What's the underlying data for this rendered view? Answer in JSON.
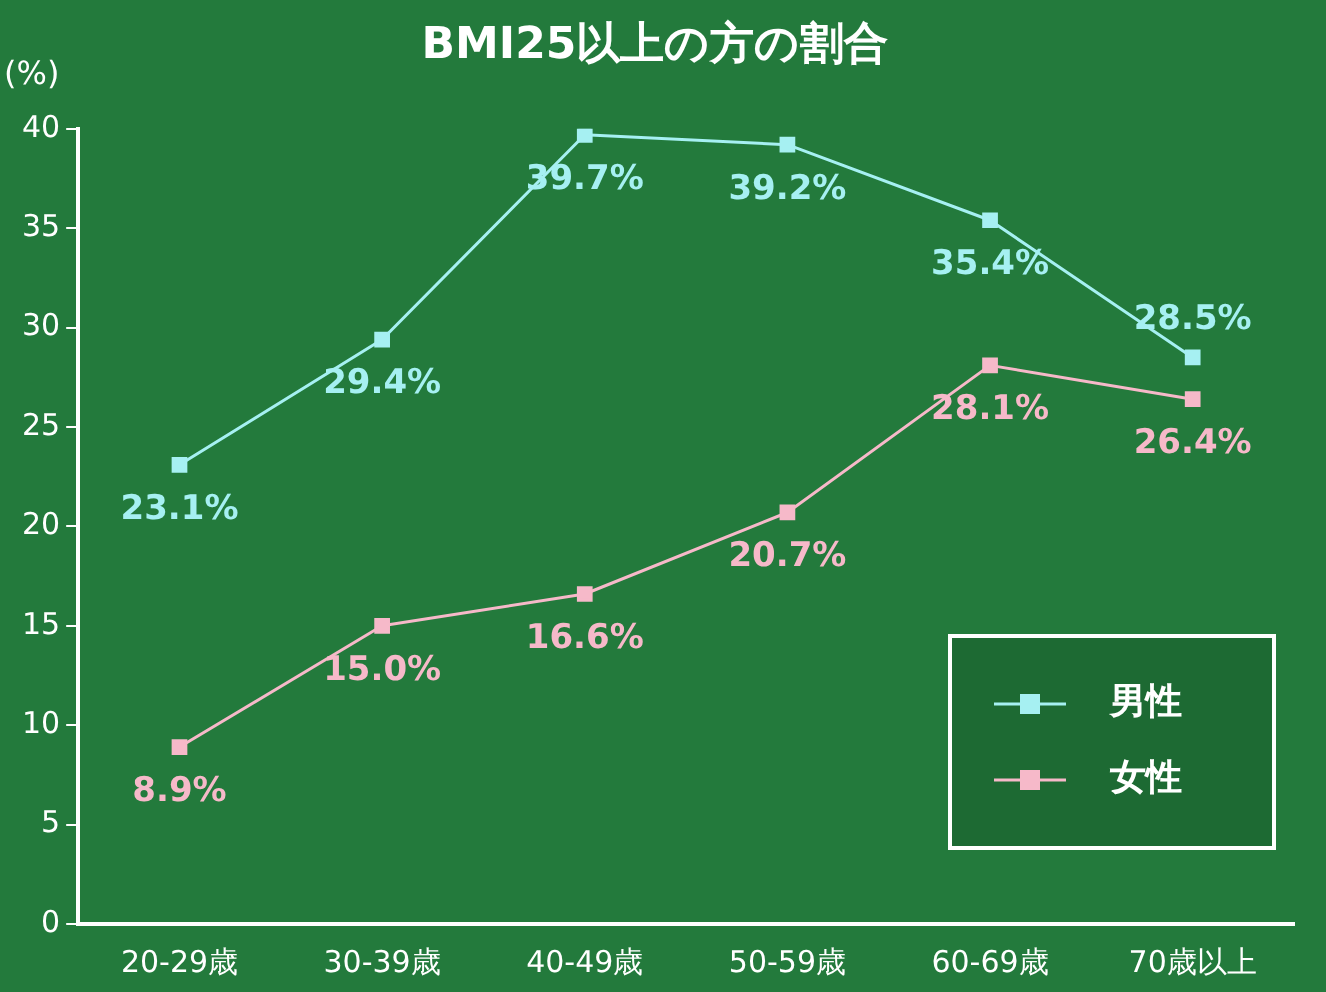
{
  "chart_data": {
    "type": "line",
    "title": "BMI25以上の方の割合",
    "ylabel": "(%)",
    "categories": [
      "20-29歳",
      "30-39歳",
      "40-49歳",
      "50-59歳",
      "60-69歳",
      "70歳以上"
    ],
    "series": [
      {
        "name": "男性",
        "color": "#a6f0f2",
        "values": [
          23.1,
          29.4,
          39.7,
          39.2,
          35.4,
          28.5
        ],
        "value_labels": [
          "23.1%",
          "29.4%",
          "39.7%",
          "39.2%",
          "35.4%",
          "28.5%"
        ]
      },
      {
        "name": "女性",
        "color": "#f6b9c9",
        "values": [
          8.9,
          15.0,
          16.6,
          20.7,
          28.1,
          26.4
        ],
        "value_labels": [
          "8.9%",
          "15.0%",
          "16.6%",
          "20.7%",
          "28.1%",
          "26.4%"
        ]
      }
    ],
    "ylim": [
      0,
      40
    ],
    "yticks": [
      0,
      5,
      10,
      15,
      20,
      25,
      30,
      35,
      40
    ],
    "grid": false,
    "legend": "bottom right",
    "marker": "square",
    "line_style": "solid"
  }
}
